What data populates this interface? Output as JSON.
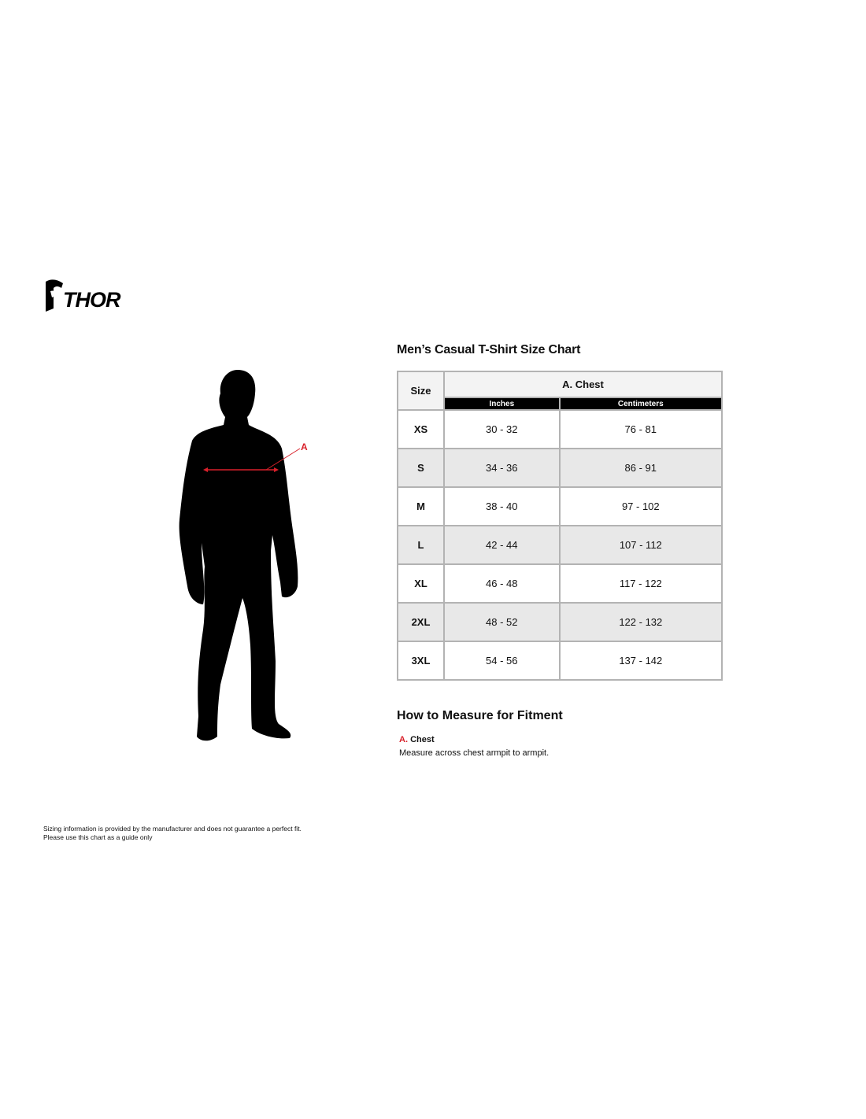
{
  "brand": {
    "logo_text": "THOR"
  },
  "figure": {
    "marker_label": "A",
    "marker_color": "#d8202a"
  },
  "chart_title": "Men’s Casual T-Shirt Size Chart",
  "table": {
    "size_header": "Size",
    "group_header": "A. Chest",
    "sub_headers": [
      "Inches",
      "Centimeters"
    ],
    "rows": [
      {
        "size": "XS",
        "inches": "30 - 32",
        "cm": "76 - 81"
      },
      {
        "size": "S",
        "inches": "34 - 36",
        "cm": "86 - 91"
      },
      {
        "size": "M",
        "inches": "38 - 40",
        "cm": "97 - 102"
      },
      {
        "size": "L",
        "inches": "42 - 44",
        "cm": "107 - 112"
      },
      {
        "size": "XL",
        "inches": "46 - 48",
        "cm": "117 - 122"
      },
      {
        "size": "2XL",
        "inches": "48 - 52",
        "cm": "122 - 132"
      },
      {
        "size": "3XL",
        "inches": "54 - 56",
        "cm": "137 - 142"
      }
    ]
  },
  "measure": {
    "title": "How to Measure for Fitment",
    "items": [
      {
        "letter": "A.",
        "name": "Chest",
        "description": "Measure across chest armpit to armpit."
      }
    ]
  },
  "disclaimer": {
    "line1": "Sizing information is provided by the manufacturer and does not guarantee a perfect fit.",
    "line2": "Please use this chart as a guide only"
  }
}
